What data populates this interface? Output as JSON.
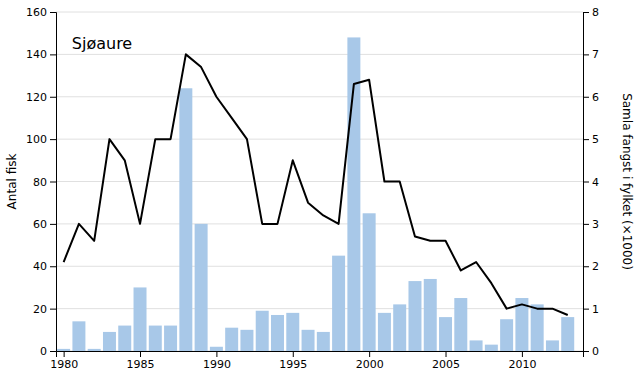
{
  "chart_data": {
    "type": "bar",
    "title": "Sjøaure",
    "ylabel": "Antal fisk",
    "y2label": "Samla fangst i fylket (×1000)",
    "x": [
      1980,
      1981,
      1982,
      1983,
      1984,
      1985,
      1986,
      1987,
      1988,
      1989,
      1990,
      1991,
      1992,
      1993,
      1994,
      1995,
      1996,
      1997,
      1998,
      1999,
      2000,
      2001,
      2002,
      2003,
      2004,
      2005,
      2006,
      2007,
      2008,
      2009,
      2010,
      2011,
      2012,
      2013
    ],
    "series": [
      {
        "type": "bar",
        "color": "#a8c8e8",
        "values": [
          1,
          14,
          1,
          9,
          12,
          30,
          12,
          12,
          124,
          60,
          2,
          11,
          10,
          19,
          17,
          18,
          10,
          9,
          45,
          148,
          65,
          18,
          22,
          33,
          34,
          16,
          25,
          5,
          3,
          15,
          25,
          22,
          5,
          16
        ]
      },
      {
        "type": "line",
        "color": "#000000",
        "axis": "y2",
        "values": [
          2.1,
          3.0,
          2.6,
          5.0,
          4.5,
          3.0,
          5.0,
          5.0,
          7.0,
          6.7,
          6.0,
          5.5,
          5.0,
          3.0,
          3.0,
          4.5,
          3.5,
          3.2,
          3.0,
          6.3,
          6.4,
          4.0,
          4.0,
          2.7,
          2.6,
          2.6,
          1.9,
          2.1,
          1.6,
          1.0,
          1.1,
          1.0,
          1.0,
          0.85
        ]
      }
    ],
    "xlim": [
      1979.5,
      2014.0
    ],
    "xticks": [
      1980,
      1985,
      1990,
      1995,
      2000,
      2005,
      2010
    ],
    "ylim": [
      0,
      160
    ],
    "yticks": [
      0,
      20,
      40,
      60,
      80,
      100,
      120,
      140,
      160
    ],
    "y2lim": [
      0,
      8
    ],
    "y2ticks": [
      0,
      1,
      2,
      3,
      4,
      5,
      6,
      7,
      8
    ],
    "grid": true
  }
}
